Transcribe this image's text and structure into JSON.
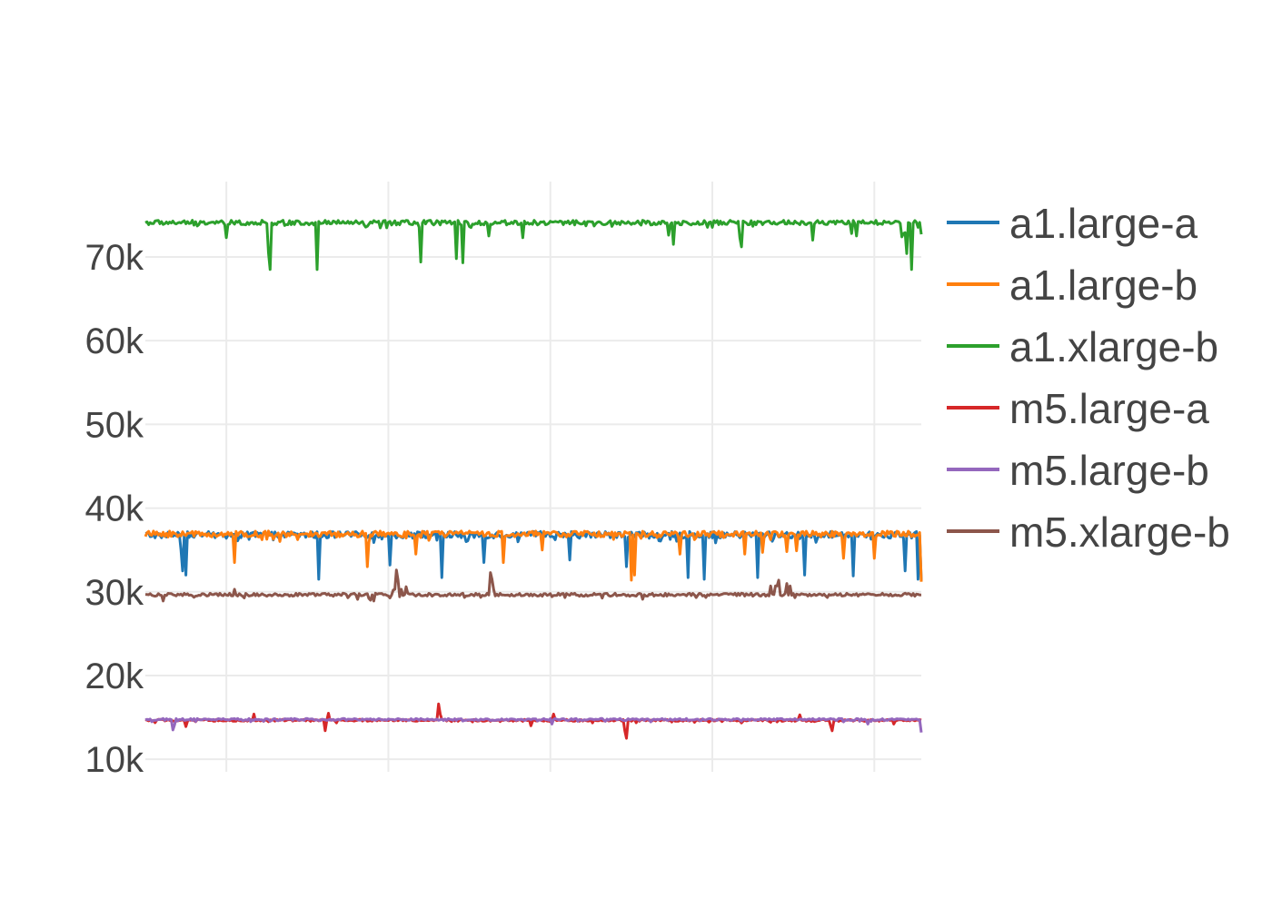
{
  "chart_data": {
    "type": "line",
    "title": "",
    "xlabel": "",
    "ylabel": "",
    "ylim": [
      8500,
      79000
    ],
    "x_count": 480,
    "grid": "on",
    "legend_placement": "right",
    "y_ticks": [
      {
        "value": 10000,
        "label": "10k"
      },
      {
        "value": 20000,
        "label": "20k"
      },
      {
        "value": 30000,
        "label": "30k"
      },
      {
        "value": 40000,
        "label": "40k"
      },
      {
        "value": 50000,
        "label": "50k"
      },
      {
        "value": 60000,
        "label": "60k"
      },
      {
        "value": 70000,
        "label": "70k"
      }
    ],
    "x_grid_positions": [
      50,
      150,
      250,
      350,
      450
    ],
    "series": [
      {
        "name": "a1.large-a",
        "color": "#1f77b4",
        "base": 36800,
        "noise": 500,
        "dips": [
          [
            22,
            35000
          ],
          [
            23,
            32500
          ],
          [
            25,
            32000
          ],
          [
            107,
            31500
          ],
          [
            151,
            33200
          ],
          [
            183,
            31700
          ],
          [
            209,
            33500
          ],
          [
            262,
            33800
          ],
          [
            297,
            33000
          ],
          [
            335,
            31700
          ],
          [
            345,
            31500
          ],
          [
            378,
            31700
          ],
          [
            407,
            32000
          ],
          [
            437,
            31900
          ],
          [
            469,
            32500
          ],
          [
            477,
            31500
          ],
          [
            479,
            31300
          ]
        ]
      },
      {
        "name": "a1.large-b",
        "color": "#ff7f0e",
        "base": 36900,
        "noise": 450,
        "dips": [
          [
            55,
            33500
          ],
          [
            137,
            33000
          ],
          [
            167,
            34500
          ],
          [
            221,
            33500
          ],
          [
            245,
            35000
          ],
          [
            300,
            31400
          ],
          [
            302,
            32000
          ],
          [
            330,
            34500
          ],
          [
            370,
            34500
          ],
          [
            381,
            34700
          ],
          [
            396,
            34800
          ],
          [
            402,
            34900
          ],
          [
            431,
            34000
          ],
          [
            450,
            34000
          ],
          [
            479,
            31200
          ]
        ]
      },
      {
        "name": "a1.xlarge-b",
        "color": "#2ca02c",
        "base": 74100,
        "noise": 350,
        "dips": [
          [
            50,
            72300
          ],
          [
            76,
            70500
          ],
          [
            77,
            68500
          ],
          [
            106,
            68500
          ],
          [
            170,
            69400
          ],
          [
            192,
            69800
          ],
          [
            196,
            69300
          ],
          [
            212,
            72500
          ],
          [
            233,
            72300
          ],
          [
            323,
            72600
          ],
          [
            326,
            71500
          ],
          [
            367,
            72300
          ],
          [
            368,
            71200
          ],
          [
            412,
            72000
          ],
          [
            436,
            72800
          ],
          [
            439,
            72500
          ],
          [
            467,
            72400
          ],
          [
            468,
            72800
          ],
          [
            469,
            72900
          ],
          [
            470,
            70400
          ],
          [
            473,
            68500
          ],
          [
            479,
            72700
          ]
        ]
      },
      {
        "name": "m5.large-a",
        "color": "#d62728",
        "base": 14650,
        "noise": 150,
        "dips": [
          [
            25,
            13900
          ],
          [
            67,
            15400
          ],
          [
            111,
            13400
          ],
          [
            113,
            15500
          ],
          [
            181,
            16600
          ],
          [
            182,
            15400
          ],
          [
            238,
            14000
          ],
          [
            252,
            15400
          ],
          [
            296,
            14400
          ],
          [
            296,
            13400
          ],
          [
            297,
            12500
          ],
          [
            404,
            15300
          ],
          [
            423,
            14000
          ],
          [
            424,
            13400
          ],
          [
            462,
            14200
          ]
        ]
      },
      {
        "name": "m5.large-b",
        "color": "#9467bd",
        "base": 14750,
        "noise": 150,
        "dips": [
          [
            17,
            13500
          ],
          [
            18,
            14100
          ],
          [
            251,
            14200
          ],
          [
            446,
            14200
          ],
          [
            479,
            13200
          ]
        ]
      },
      {
        "name": "m5.xlarge-b",
        "color": "#8c564b",
        "base": 29650,
        "noise": 230,
        "dips": [
          [
            11,
            28900
          ],
          [
            55,
            30300
          ],
          [
            139,
            29000
          ],
          [
            141,
            28900
          ],
          [
            154,
            30300
          ],
          [
            161,
            30600
          ],
          [
            154,
            30200
          ],
          [
            158,
            30300
          ],
          [
            154,
            30000
          ],
          [
            155,
            30400
          ],
          [
            153,
            30200
          ],
          [
            154,
            30100
          ],
          [
            154,
            30400
          ],
          [
            154,
            30200
          ],
          [
            154,
            30300
          ],
          [
            154,
            30200
          ],
          [
            154,
            30300
          ],
          [
            154,
            30200
          ],
          [
            154,
            30300
          ],
          [
            154,
            30200
          ],
          [
            154,
            30300
          ],
          [
            154,
            30200
          ],
          [
            154,
            30300
          ],
          [
            155,
            32600
          ],
          [
            156,
            31400
          ],
          [
            213,
            32300
          ],
          [
            214,
            31500
          ],
          [
            215,
            30300
          ],
          [
            386,
            30700
          ],
          [
            389,
            30700
          ],
          [
            390,
            30700
          ],
          [
            391,
            31400
          ],
          [
            396,
            31000
          ],
          [
            398,
            30700
          ]
        ]
      }
    ]
  }
}
